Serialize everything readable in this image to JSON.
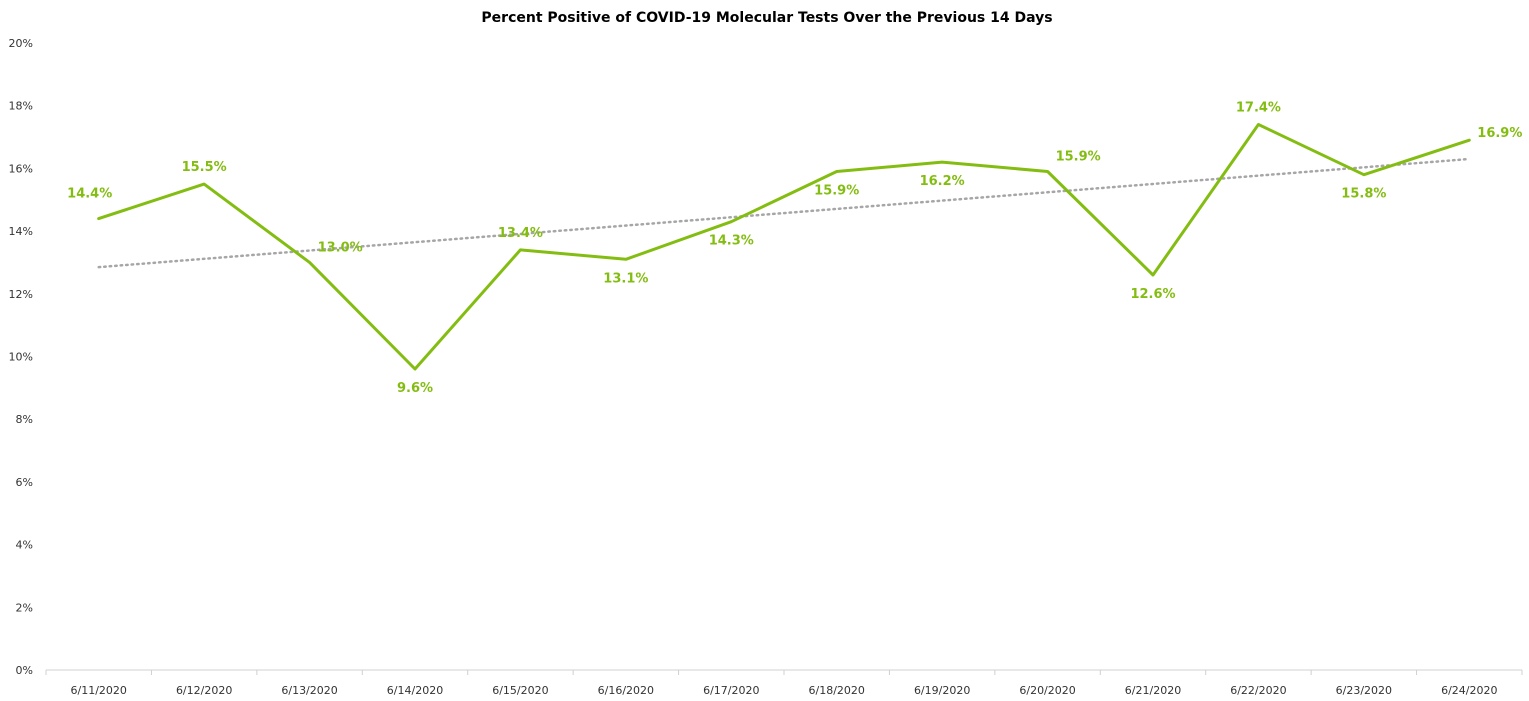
{
  "chart_data": {
    "type": "line",
    "title": "Percent Positive of COVID-19 Molecular Tests Over the Previous 14 Days",
    "xlabel": "",
    "ylabel": "",
    "categories": [
      "6/11/2020",
      "6/12/2020",
      "6/13/2020",
      "6/14/2020",
      "6/15/2020",
      "6/16/2020",
      "6/17/2020",
      "6/18/2020",
      "6/19/2020",
      "6/20/2020",
      "6/21/2020",
      "6/22/2020",
      "6/23/2020",
      "6/24/2020"
    ],
    "series": [
      {
        "values": [
          14.4,
          15.5,
          13.0,
          9.6,
          13.4,
          13.1,
          14.3,
          15.9,
          16.2,
          15.9,
          12.6,
          17.4,
          15.8,
          16.9
        ],
        "labels": [
          "14.4%",
          "15.5%",
          "13.0%",
          "9.6%",
          "13.4%",
          "13.1%",
          "14.3%",
          "15.9%",
          "16.2%",
          "15.9%",
          "12.6%",
          "17.4%",
          "15.8%",
          "16.9%"
        ],
        "label_positions": [
          "above-left",
          "above",
          "right",
          "below",
          "above",
          "below",
          "below",
          "below",
          "below",
          "right",
          "below",
          "above",
          "below",
          "above-right"
        ],
        "color": "#84bd12"
      }
    ],
    "trendline": {
      "type": "linear",
      "style": "dotted",
      "color": "#a6a6a6",
      "start": 12.85,
      "end": 16.3
    },
    "ylim": [
      0,
      20
    ],
    "yticks": [
      0,
      2,
      4,
      6,
      8,
      10,
      12,
      14,
      16,
      18,
      20
    ],
    "ytick_labels": [
      "0%",
      "2%",
      "4%",
      "6%",
      "8%",
      "10%",
      "12%",
      "14%",
      "16%",
      "18%",
      "20%"
    ],
    "grid": false,
    "legend": "none"
  }
}
